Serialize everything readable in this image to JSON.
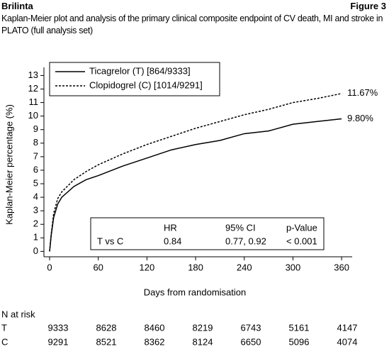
{
  "header": {
    "left": "Brilinta",
    "right": "Figure 3"
  },
  "chart_data": {
    "type": "line",
    "title": "Kaplan-Meier plot and analysis of the primary clinical composite endpoint of CV death, MI and stroke in PLATO (full analysis set)",
    "xlabel": "Days from randomisation",
    "ylabel": "Kaplan-Meier percentage (%)",
    "x": [
      0,
      2,
      5,
      10,
      15,
      30,
      45,
      60,
      90,
      120,
      150,
      180,
      210,
      240,
      270,
      300,
      330,
      360
    ],
    "series": [
      {
        "name": "Ticagrelor (T) [864/9333]",
        "color": "#000000",
        "line_style": "solid",
        "values": [
          0,
          1.2,
          2.5,
          3.5,
          4.0,
          4.8,
          5.3,
          5.6,
          6.3,
          6.9,
          7.5,
          7.9,
          8.2,
          8.7,
          8.9,
          9.4,
          9.6,
          9.8
        ],
        "value_labels": [
          null,
          null,
          null,
          null,
          null,
          null,
          null,
          null,
          null,
          null,
          null,
          null,
          null,
          null,
          null,
          null,
          null,
          "9.80%"
        ]
      },
      {
        "name": "Clopidogrel (C) [1014/9291]",
        "color": "#000000",
        "line_style": "dotted",
        "values": [
          0,
          1.3,
          2.8,
          3.9,
          4.4,
          5.3,
          5.9,
          6.4,
          7.2,
          7.9,
          8.5,
          9.1,
          9.6,
          10.1,
          10.5,
          11.0,
          11.3,
          11.67
        ],
        "value_labels": [
          null,
          null,
          null,
          null,
          null,
          null,
          null,
          null,
          null,
          null,
          null,
          null,
          null,
          null,
          null,
          null,
          null,
          "11.67%"
        ]
      }
    ],
    "xlim": [
      -7,
      373
    ],
    "ylim": [
      -0.4,
      13.6
    ],
    "xticks": [
      0,
      60,
      120,
      180,
      240,
      300,
      360
    ],
    "yticks": [
      0,
      1,
      2,
      3,
      4,
      5,
      6,
      7,
      8,
      9,
      10,
      11,
      12,
      13
    ],
    "grid": false,
    "legend": "upper left",
    "hr_table": {
      "header": [
        "HR",
        "95% CI",
        "p-Value"
      ],
      "rows": [
        [
          "T vs C",
          "0.84",
          "0.77, 0.92",
          "< 0.001"
        ]
      ]
    },
    "risk_table": {
      "title": "N at risk",
      "rows": [
        {
          "label": "T",
          "values": [
            "9333",
            "8628",
            "8460",
            "8219",
            "6743",
            "5161",
            "4147"
          ]
        },
        {
          "label": "C",
          "values": [
            "9291",
            "8521",
            "8362",
            "8124",
            "6650",
            "5096",
            "4074"
          ]
        }
      ]
    }
  }
}
